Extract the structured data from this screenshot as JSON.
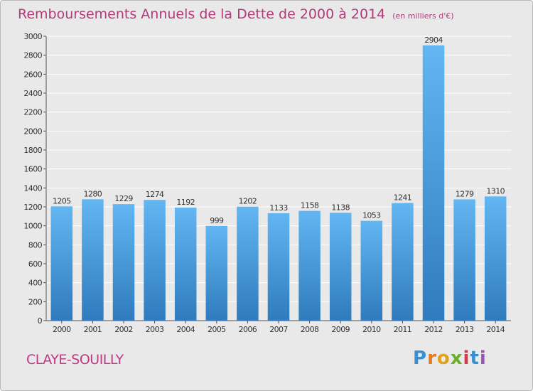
{
  "title": "Remboursements Annuels de la Dette de 2000 à 2014",
  "unit": "(en milliers d'€)",
  "city": "CLAYE-SOUILLY",
  "logo": {
    "text": "Proxiti",
    "letters": [
      "P",
      "r",
      "o",
      "x",
      "i",
      "t",
      "i"
    ],
    "colors": [
      "#3a8fd1",
      "#e47b1e",
      "#e0a21a",
      "#6aaf2c",
      "#d23a4e",
      "#3a8fd1",
      "#9b55b7"
    ]
  },
  "colors": {
    "bar_top": "#62b6f2",
    "bar_bottom": "#2f7bbd",
    "grid": "#ffffff",
    "axis_text": "#333333",
    "title": "#b03a7a"
  },
  "chart_data": {
    "type": "bar",
    "categories": [
      "2000",
      "2001",
      "2002",
      "2003",
      "2004",
      "2005",
      "2006",
      "2007",
      "2008",
      "2009",
      "2010",
      "2011",
      "2012",
      "2013",
      "2014"
    ],
    "values": [
      1205,
      1280,
      1229,
      1274,
      1192,
      999,
      1202,
      1133,
      1158,
      1138,
      1053,
      1241,
      2904,
      1279,
      1310
    ],
    "yticks": [
      "0",
      "200",
      "400",
      "600",
      "800",
      "1000",
      "1200",
      "1400",
      "1600",
      "1800",
      "2000",
      "2200",
      "2400",
      "2600",
      "2800",
      "3000"
    ],
    "ylim": [
      0,
      3000
    ],
    "grid": true
  }
}
